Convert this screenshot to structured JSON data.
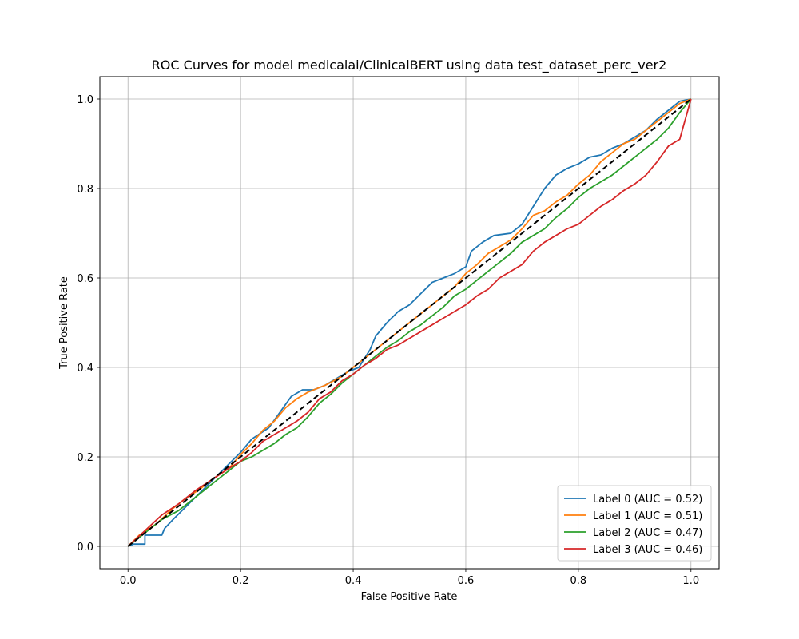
{
  "chart_data": {
    "type": "line",
    "title": "ROC Curves for model medicalai/ClinicalBERT using data test_dataset_perc_ver2",
    "xlabel": "False Positive Rate",
    "ylabel": "True Positive Rate",
    "xlim": [
      -0.05,
      1.05
    ],
    "ylim": [
      -0.05,
      1.05
    ],
    "xticks": [
      "0.0",
      "0.2",
      "0.4",
      "0.6",
      "0.8",
      "1.0"
    ],
    "yticks": [
      "0.0",
      "0.2",
      "0.4",
      "0.6",
      "0.8",
      "1.0"
    ],
    "grid": true,
    "legend_position": "lower-right",
    "series": [
      {
        "name": "Label 0 (AUC = 0.52)",
        "color": "#1f77b4",
        "points": [
          [
            0,
            0
          ],
          [
            0.01,
            0.005
          ],
          [
            0.03,
            0.005
          ],
          [
            0.03,
            0.025
          ],
          [
            0.06,
            0.025
          ],
          [
            0.065,
            0.04
          ],
          [
            0.08,
            0.06
          ],
          [
            0.1,
            0.085
          ],
          [
            0.12,
            0.11
          ],
          [
            0.14,
            0.135
          ],
          [
            0.16,
            0.16
          ],
          [
            0.18,
            0.185
          ],
          [
            0.2,
            0.21
          ],
          [
            0.22,
            0.24
          ],
          [
            0.25,
            0.265
          ],
          [
            0.27,
            0.3
          ],
          [
            0.29,
            0.335
          ],
          [
            0.31,
            0.35
          ],
          [
            0.33,
            0.35
          ],
          [
            0.35,
            0.36
          ],
          [
            0.37,
            0.375
          ],
          [
            0.39,
            0.39
          ],
          [
            0.41,
            0.4
          ],
          [
            0.43,
            0.44
          ],
          [
            0.44,
            0.47
          ],
          [
            0.46,
            0.5
          ],
          [
            0.48,
            0.525
          ],
          [
            0.5,
            0.54
          ],
          [
            0.52,
            0.565
          ],
          [
            0.54,
            0.59
          ],
          [
            0.56,
            0.6
          ],
          [
            0.58,
            0.61
          ],
          [
            0.6,
            0.625
          ],
          [
            0.61,
            0.66
          ],
          [
            0.63,
            0.68
          ],
          [
            0.65,
            0.695
          ],
          [
            0.68,
            0.7
          ],
          [
            0.7,
            0.72
          ],
          [
            0.72,
            0.76
          ],
          [
            0.74,
            0.8
          ],
          [
            0.76,
            0.83
          ],
          [
            0.78,
            0.845
          ],
          [
            0.8,
            0.855
          ],
          [
            0.82,
            0.87
          ],
          [
            0.84,
            0.875
          ],
          [
            0.86,
            0.89
          ],
          [
            0.88,
            0.9
          ],
          [
            0.9,
            0.915
          ],
          [
            0.92,
            0.93
          ],
          [
            0.94,
            0.955
          ],
          [
            0.96,
            0.975
          ],
          [
            0.98,
            0.995
          ],
          [
            1,
            1
          ]
        ]
      },
      {
        "name": "Label 1 (AUC = 0.51)",
        "color": "#ff7f0e",
        "points": [
          [
            0,
            0
          ],
          [
            0.02,
            0.025
          ],
          [
            0.05,
            0.05
          ],
          [
            0.08,
            0.085
          ],
          [
            0.1,
            0.105
          ],
          [
            0.13,
            0.13
          ],
          [
            0.15,
            0.15
          ],
          [
            0.18,
            0.175
          ],
          [
            0.2,
            0.205
          ],
          [
            0.22,
            0.23
          ],
          [
            0.24,
            0.26
          ],
          [
            0.26,
            0.28
          ],
          [
            0.28,
            0.31
          ],
          [
            0.3,
            0.33
          ],
          [
            0.32,
            0.345
          ],
          [
            0.35,
            0.36
          ],
          [
            0.38,
            0.38
          ],
          [
            0.4,
            0.4
          ],
          [
            0.42,
            0.42
          ],
          [
            0.44,
            0.44
          ],
          [
            0.46,
            0.46
          ],
          [
            0.48,
            0.48
          ],
          [
            0.5,
            0.5
          ],
          [
            0.52,
            0.52
          ],
          [
            0.54,
            0.54
          ],
          [
            0.56,
            0.56
          ],
          [
            0.58,
            0.58
          ],
          [
            0.6,
            0.61
          ],
          [
            0.62,
            0.63
          ],
          [
            0.64,
            0.655
          ],
          [
            0.66,
            0.67
          ],
          [
            0.68,
            0.685
          ],
          [
            0.7,
            0.71
          ],
          [
            0.72,
            0.74
          ],
          [
            0.74,
            0.75
          ],
          [
            0.76,
            0.77
          ],
          [
            0.78,
            0.785
          ],
          [
            0.8,
            0.81
          ],
          [
            0.82,
            0.83
          ],
          [
            0.84,
            0.86
          ],
          [
            0.86,
            0.88
          ],
          [
            0.88,
            0.9
          ],
          [
            0.9,
            0.91
          ],
          [
            0.92,
            0.93
          ],
          [
            0.94,
            0.95
          ],
          [
            0.96,
            0.97
          ],
          [
            0.98,
            0.99
          ],
          [
            1,
            1
          ]
        ]
      },
      {
        "name": "Label 2 (AUC = 0.47)",
        "color": "#2ca02c",
        "points": [
          [
            0,
            0
          ],
          [
            0.03,
            0.03
          ],
          [
            0.06,
            0.06
          ],
          [
            0.09,
            0.08
          ],
          [
            0.12,
            0.11
          ],
          [
            0.15,
            0.14
          ],
          [
            0.18,
            0.17
          ],
          [
            0.2,
            0.19
          ],
          [
            0.22,
            0.2
          ],
          [
            0.24,
            0.215
          ],
          [
            0.26,
            0.23
          ],
          [
            0.28,
            0.25
          ],
          [
            0.3,
            0.265
          ],
          [
            0.32,
            0.29
          ],
          [
            0.34,
            0.32
          ],
          [
            0.36,
            0.34
          ],
          [
            0.38,
            0.365
          ],
          [
            0.4,
            0.385
          ],
          [
            0.42,
            0.405
          ],
          [
            0.44,
            0.425
          ],
          [
            0.46,
            0.445
          ],
          [
            0.48,
            0.46
          ],
          [
            0.5,
            0.48
          ],
          [
            0.52,
            0.495
          ],
          [
            0.54,
            0.515
          ],
          [
            0.56,
            0.535
          ],
          [
            0.58,
            0.56
          ],
          [
            0.6,
            0.575
          ],
          [
            0.62,
            0.595
          ],
          [
            0.64,
            0.615
          ],
          [
            0.66,
            0.635
          ],
          [
            0.68,
            0.655
          ],
          [
            0.7,
            0.68
          ],
          [
            0.72,
            0.695
          ],
          [
            0.74,
            0.71
          ],
          [
            0.76,
            0.735
          ],
          [
            0.78,
            0.755
          ],
          [
            0.8,
            0.78
          ],
          [
            0.82,
            0.8
          ],
          [
            0.84,
            0.815
          ],
          [
            0.86,
            0.83
          ],
          [
            0.88,
            0.85
          ],
          [
            0.9,
            0.87
          ],
          [
            0.92,
            0.89
          ],
          [
            0.94,
            0.91
          ],
          [
            0.96,
            0.935
          ],
          [
            0.98,
            0.97
          ],
          [
            1,
            1
          ]
        ]
      },
      {
        "name": "Label 3 (AUC = 0.46)",
        "color": "#d62728",
        "points": [
          [
            0,
            0
          ],
          [
            0.03,
            0.035
          ],
          [
            0.06,
            0.07
          ],
          [
            0.09,
            0.095
          ],
          [
            0.12,
            0.125
          ],
          [
            0.15,
            0.15
          ],
          [
            0.18,
            0.175
          ],
          [
            0.2,
            0.19
          ],
          [
            0.22,
            0.21
          ],
          [
            0.24,
            0.235
          ],
          [
            0.26,
            0.25
          ],
          [
            0.28,
            0.265
          ],
          [
            0.3,
            0.28
          ],
          [
            0.32,
            0.3
          ],
          [
            0.34,
            0.33
          ],
          [
            0.36,
            0.345
          ],
          [
            0.38,
            0.37
          ],
          [
            0.4,
            0.385
          ],
          [
            0.42,
            0.405
          ],
          [
            0.44,
            0.42
          ],
          [
            0.46,
            0.44
          ],
          [
            0.48,
            0.45
          ],
          [
            0.5,
            0.465
          ],
          [
            0.52,
            0.48
          ],
          [
            0.54,
            0.495
          ],
          [
            0.56,
            0.51
          ],
          [
            0.58,
            0.525
          ],
          [
            0.6,
            0.54
          ],
          [
            0.62,
            0.56
          ],
          [
            0.64,
            0.575
          ],
          [
            0.66,
            0.6
          ],
          [
            0.68,
            0.615
          ],
          [
            0.7,
            0.63
          ],
          [
            0.72,
            0.66
          ],
          [
            0.74,
            0.68
          ],
          [
            0.76,
            0.695
          ],
          [
            0.78,
            0.71
          ],
          [
            0.8,
            0.72
          ],
          [
            0.82,
            0.74
          ],
          [
            0.84,
            0.76
          ],
          [
            0.86,
            0.775
          ],
          [
            0.88,
            0.795
          ],
          [
            0.9,
            0.81
          ],
          [
            0.92,
            0.83
          ],
          [
            0.94,
            0.86
          ],
          [
            0.96,
            0.895
          ],
          [
            0.98,
            0.91
          ],
          [
            1,
            1
          ]
        ]
      },
      {
        "name": "",
        "color": "#000000",
        "dashed": true,
        "points": [
          [
            0,
            0
          ],
          [
            1,
            1
          ]
        ]
      }
    ]
  }
}
